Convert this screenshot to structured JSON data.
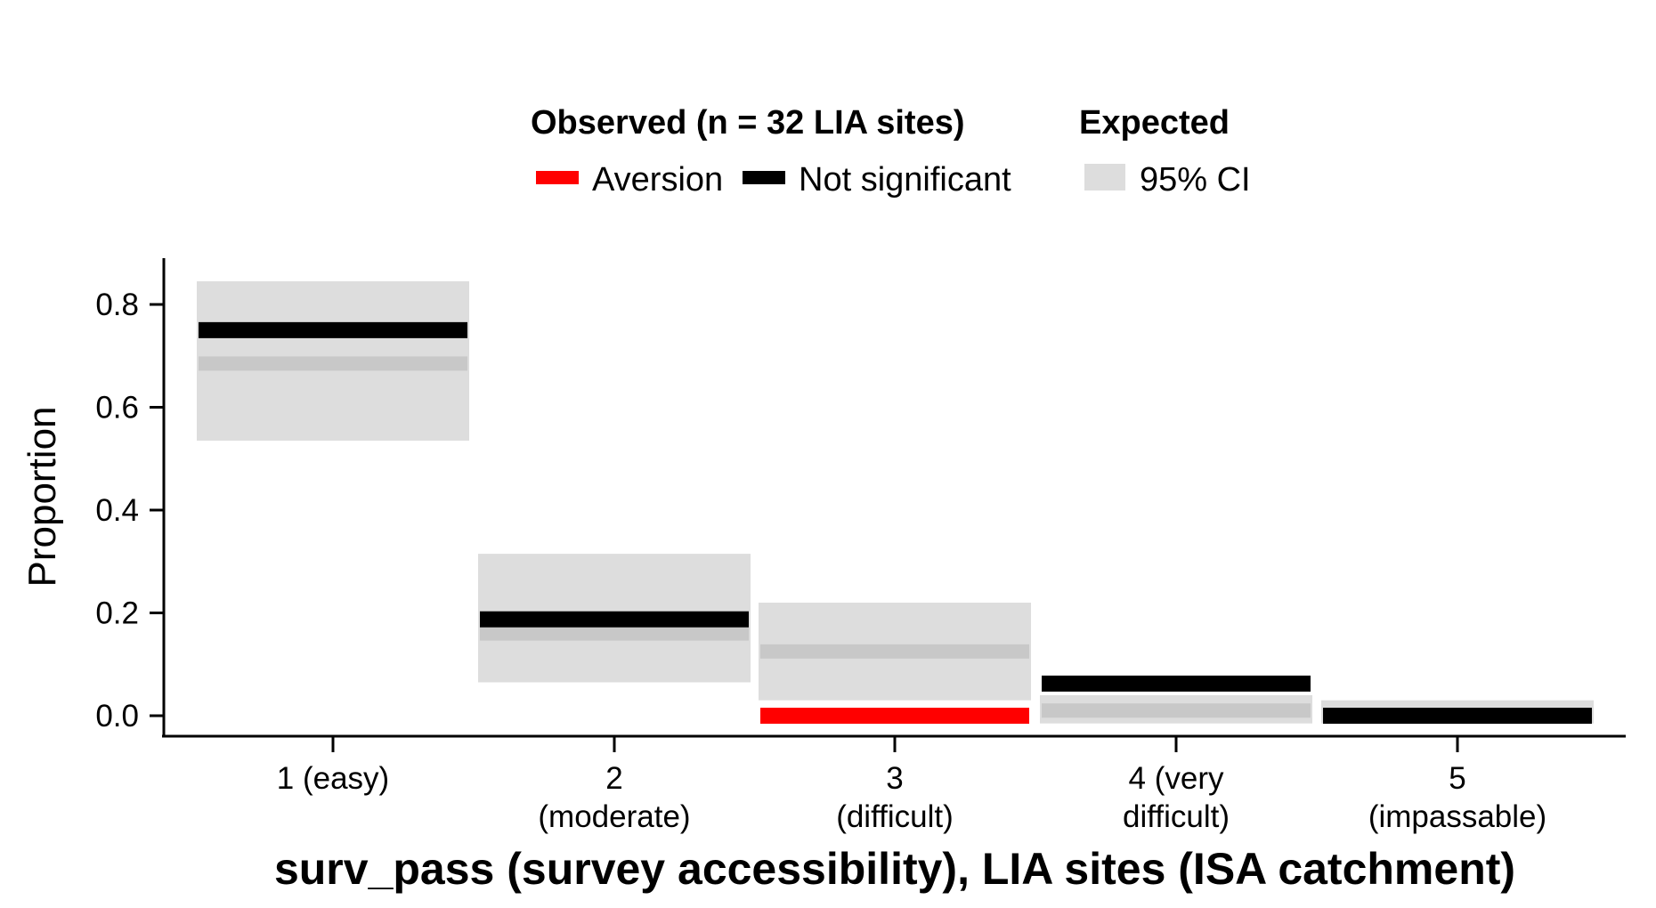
{
  "chart_data": {
    "type": "bar",
    "xlabel": "surv_pass (survey accessibility), LIA sites (ISA catchment)",
    "ylabel": "Proportion",
    "ylim": [
      -0.04,
      0.88
    ],
    "yticks": [
      "0.0",
      "0.2",
      "0.4",
      "0.6",
      "0.8"
    ],
    "categories": [
      [
        "1 (easy)"
      ],
      [
        "2",
        "(moderate)"
      ],
      [
        "3",
        "(difficult)"
      ],
      [
        "4 (very",
        "difficult)"
      ],
      [
        "5",
        "(impassable)"
      ]
    ],
    "expected": {
      "name": "95% CI",
      "mean": [
        0.685,
        0.16,
        0.125,
        0.01,
        0.0
      ],
      "ci_low": [
        0.535,
        0.065,
        0.03,
        -0.015,
        -0.015
      ],
      "ci_high": [
        0.845,
        0.315,
        0.22,
        0.04,
        0.03
      ]
    },
    "observed": {
      "values": [
        0.75,
        0.1875,
        0.0,
        0.0625,
        0.0
      ],
      "status": [
        "Not significant",
        "Not significant",
        "Aversion",
        "Not significant",
        "Not significant"
      ]
    },
    "legend": {
      "position": "top",
      "observed_title": "Observed (n = 32 LIA sites)",
      "observed_items": [
        {
          "label": "Aversion",
          "color": "#ff0000"
        },
        {
          "label": "Not significant",
          "color": "#000000"
        }
      ],
      "expected_title": "Expected",
      "expected_items": [
        {
          "label": "95% CI",
          "color": "#dddddd"
        }
      ]
    },
    "colors": {
      "ci_fill": "#dddddd",
      "expected_line": "#c8c8c8",
      "Aversion": "#ff0000",
      "Not significant": "#000000"
    },
    "grid": false
  }
}
